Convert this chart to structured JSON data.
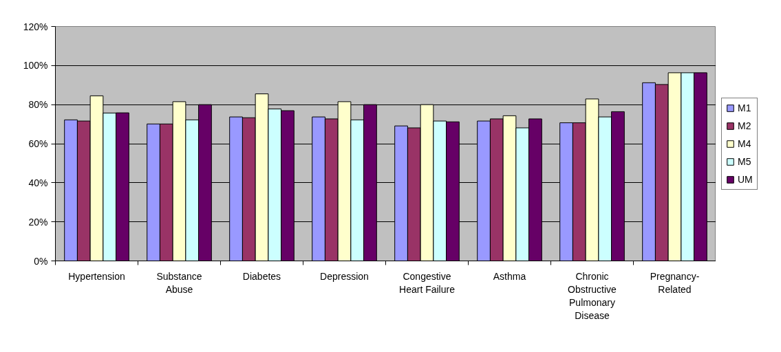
{
  "chart_data": {
    "type": "bar",
    "categories": [
      "Hypertension",
      "Substance Abuse",
      "Diabetes",
      "Depression",
      "Congestive Heart Failure",
      "Asthma",
      "Chronic Obstructive Pulmonary Disease",
      "Pregnancy-Related"
    ],
    "series": [
      {
        "name": "M1",
        "color": "#9999ff",
        "values": [
          72.2,
          70.1,
          73.7,
          73.7,
          69.1,
          71.6,
          70.7,
          91.2
        ]
      },
      {
        "name": "M2",
        "color": "#993366",
        "values": [
          71.6,
          70.1,
          73.3,
          72.7,
          68.1,
          72.7,
          70.7,
          90.3
        ]
      },
      {
        "name": "M4",
        "color": "#ffffcc",
        "values": [
          84.5,
          81.5,
          85.5,
          81.5,
          80.0,
          74.3,
          82.9,
          96.3
        ]
      },
      {
        "name": "M5",
        "color": "#ccffff",
        "values": [
          75.7,
          72.2,
          77.8,
          72.2,
          71.6,
          68.1,
          73.7,
          96.3
        ]
      },
      {
        "name": "UM",
        "color": "#660066",
        "values": [
          75.8,
          80.0,
          76.9,
          80.0,
          71.2,
          72.7,
          76.4,
          96.3
        ]
      }
    ],
    "ylim": [
      0,
      120
    ],
    "yticks": [
      {
        "value": 0,
        "label": "0%"
      },
      {
        "value": 20,
        "label": "20%"
      },
      {
        "value": 40,
        "label": "40%"
      },
      {
        "value": 60,
        "label": "60%"
      },
      {
        "value": 80,
        "label": "80%"
      },
      {
        "value": 100,
        "label": "100%"
      },
      {
        "value": 120,
        "label": "120%"
      }
    ],
    "grid": "y",
    "legend": "right"
  }
}
